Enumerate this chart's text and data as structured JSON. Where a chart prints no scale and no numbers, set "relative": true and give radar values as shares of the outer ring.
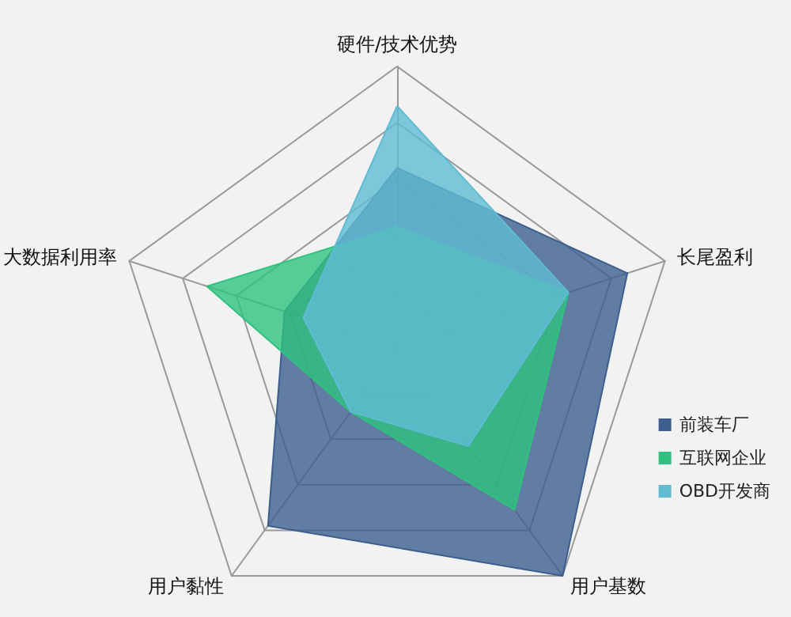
{
  "chart_data": {
    "type": "radar",
    "relative": true,
    "categories": [
      "硬件/技术优势",
      "长尾盈利",
      "用户基数",
      "用户黏性",
      "大数据利用率"
    ],
    "series": [
      {
        "name": "前装车厂",
        "color": "#3c5f8f",
        "values": [
          0.64,
          0.86,
          1.0,
          0.78,
          0.42
        ]
      },
      {
        "name": "互联网企业",
        "color": "#2ec27e",
        "values": [
          0.43,
          0.64,
          0.71,
          0.28,
          0.71
        ]
      },
      {
        "name": "OBD开发商",
        "color": "#5fbcd3",
        "values": [
          0.86,
          0.64,
          0.43,
          0.28,
          0.35
        ]
      }
    ],
    "legend": "right",
    "marker": "none"
  }
}
